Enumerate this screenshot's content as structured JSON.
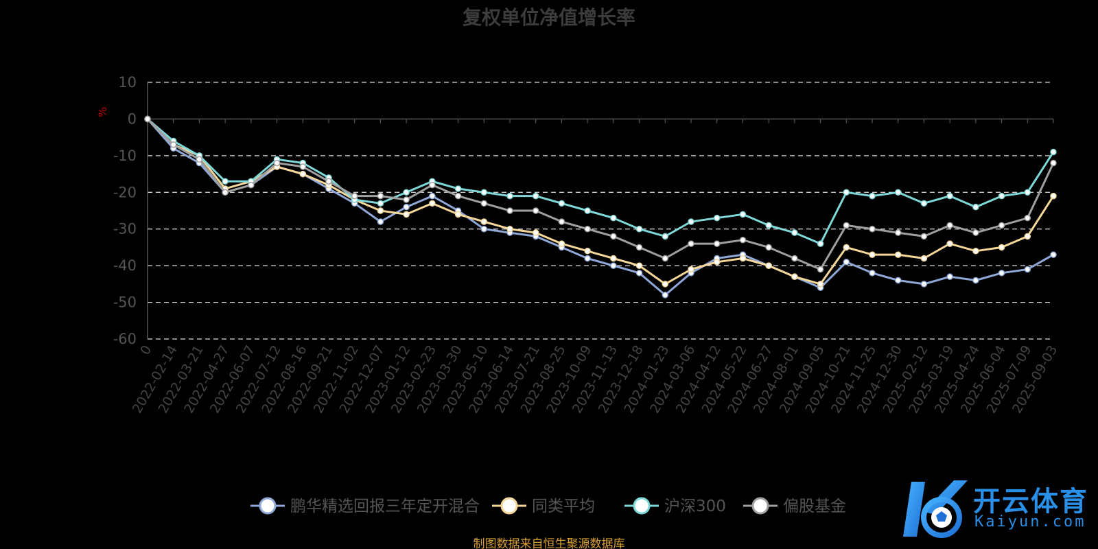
{
  "title": "复权单位净值增长率",
  "source_note": "制图数据来自恒生聚源数据库",
  "watermark": {
    "brand": "开云体育",
    "domain": "Kaiyun.com"
  },
  "chart_data": {
    "type": "line",
    "title": "复权单位净值增长率",
    "ylabel": "%",
    "ylim": [
      -60,
      10
    ],
    "yticks": [
      10,
      0,
      -10,
      -20,
      -30,
      -40,
      -50,
      -60
    ],
    "grid": true,
    "legend_position": "bottom",
    "x_tick_labels": [
      "0",
      "2022-02-14",
      "2022-03-21",
      "2022-04-27",
      "2022-06-07",
      "2022-07-12",
      "2022-08-16",
      "2022-09-21",
      "2022-11-02",
      "2022-12-07",
      "2023-01-12",
      "2023-02-23",
      "2023-03-30",
      "2023-05-10",
      "2023-06-14",
      "2023-07-21",
      "2023-08-25",
      "2023-10-09",
      "2023-11-13",
      "2023-12-18",
      "2024-01-23",
      "2024-03-06",
      "2024-04-12",
      "2024-05-22",
      "2024-06-27",
      "2024-08-01",
      "2024-09-05",
      "2024-10-21",
      "2024-11-25",
      "2024-12-30",
      "2025-02-12",
      "2025-03-19",
      "2025-04-24",
      "2025-06-04",
      "2025-07-09",
      "2025-09-03"
    ],
    "series": [
      {
        "name": "鹏华精选回报三年定开混合",
        "color": "#8fa8d8",
        "values": [
          0,
          -8,
          -12,
          -20,
          -18,
          -13,
          -15,
          -19,
          -23,
          -28,
          -24,
          -21,
          -25,
          -30,
          -31,
          -32,
          -35,
          -38,
          -40,
          -42,
          -48,
          -42,
          -38,
          -37,
          -40,
          -43,
          -46,
          -39,
          -42,
          -44,
          -45,
          -43,
          -44,
          -42,
          -41,
          -37
        ]
      },
      {
        "name": "同类平均",
        "color": "#f5d79a",
        "values": [
          0,
          -7,
          -10,
          -19,
          -17,
          -13,
          -15,
          -18,
          -22,
          -25,
          -26,
          -23,
          -26,
          -28,
          -30,
          -31,
          -34,
          -36,
          -38,
          -40,
          -45,
          -41,
          -39,
          -38,
          -40,
          -43,
          -45,
          -35,
          -37,
          -37,
          -38,
          -34,
          -36,
          -35,
          -32,
          -21
        ]
      },
      {
        "name": "沪深300",
        "color": "#7fd8d8",
        "values": [
          0,
          -6,
          -10,
          -17,
          -17,
          -11,
          -12,
          -16,
          -22,
          -23,
          -20,
          -17,
          -19,
          -20,
          -21,
          -21,
          -23,
          -25,
          -27,
          -30,
          -32,
          -28,
          -27,
          -26,
          -29,
          -31,
          -34,
          -20,
          -21,
          -20,
          -23,
          -21,
          -24,
          -21,
          -20,
          -9
        ]
      },
      {
        "name": "偏股基金",
        "color": "#a0a0a0",
        "values": [
          0,
          -7,
          -11,
          -20,
          -18,
          -12,
          -13,
          -17,
          -21,
          -21,
          -22,
          -18,
          -21,
          -23,
          -25,
          -25,
          -28,
          -30,
          -32,
          -35,
          -38,
          -34,
          -34,
          -33,
          -35,
          -38,
          -41,
          -29,
          -30,
          -31,
          -32,
          -29,
          -31,
          -29,
          -27,
          -12
        ]
      }
    ]
  }
}
